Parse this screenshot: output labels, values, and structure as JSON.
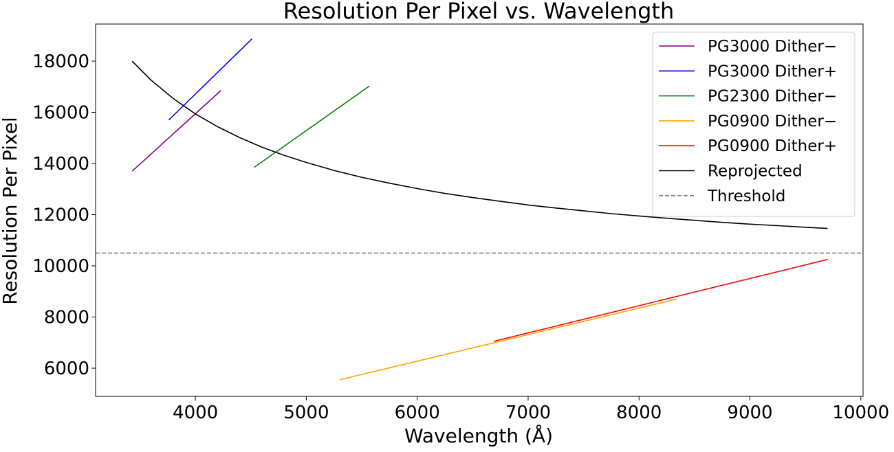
{
  "chart_data": {
    "type": "line",
    "title": "Resolution Per Pixel vs. Wavelength",
    "xlabel": "Wavelength (Å)",
    "ylabel": "Resolution Per Pixel",
    "xlim": [
      3100,
      10020
    ],
    "ylim": [
      4900,
      19450
    ],
    "xticks": [
      4000,
      5000,
      6000,
      7000,
      8000,
      9000,
      10000
    ],
    "xtick_labels": [
      "4000",
      "5000",
      "6000",
      "7000",
      "8000",
      "9000",
      "10000"
    ],
    "yticks": [
      6000,
      8000,
      10000,
      12000,
      14000,
      16000,
      18000
    ],
    "ytick_labels": [
      "6000",
      "8000",
      "10000",
      "12000",
      "14000",
      "16000",
      "18000"
    ],
    "grid": false,
    "legend_position": "top-right",
    "series": [
      {
        "name": "PG3000 Dither−",
        "color": "#800080",
        "dash": "solid",
        "x": [
          3430,
          4230
        ],
        "y": [
          13700,
          16850
        ]
      },
      {
        "name": "PG3000 Dither+",
        "color": "#0000ff",
        "dash": "solid",
        "x": [
          3760,
          4510
        ],
        "y": [
          15700,
          18870
        ]
      },
      {
        "name": "PG2300 Dither−",
        "color": "#008000",
        "dash": "solid",
        "x": [
          4530,
          5570
        ],
        "y": [
          13850,
          17030
        ]
      },
      {
        "name": "PG0900 Dither−",
        "color": "#ffa500",
        "dash": "solid",
        "x": [
          5300,
          8340
        ],
        "y": [
          5550,
          8700
        ]
      },
      {
        "name": "PG0900 Dither+",
        "color": "#ff0000",
        "dash": "solid",
        "x": [
          6690,
          9700
        ],
        "y": [
          7050,
          10250
        ]
      },
      {
        "name": "Reprojected",
        "color": "#000000",
        "dash": "solid",
        "x": [
          3430,
          3600,
          3800,
          4000,
          4200,
          4400,
          4600,
          4800,
          5000,
          5250,
          5500,
          5750,
          6000,
          6250,
          6500,
          6750,
          7000,
          7250,
          7500,
          7750,
          8000,
          8250,
          8500,
          8750,
          9000,
          9250,
          9500,
          9700
        ],
        "y": [
          18000,
          17260,
          16540,
          15940,
          15440,
          15010,
          14640,
          14320,
          14040,
          13730,
          13460,
          13230,
          13020,
          12830,
          12670,
          12520,
          12380,
          12260,
          12150,
          12040,
          11950,
          11860,
          11780,
          11700,
          11630,
          11570,
          11510,
          11460
        ]
      },
      {
        "name": "Threshold",
        "color": "#808080",
        "dash": "dashed",
        "x": [
          3100,
          10020
        ],
        "y": [
          10500,
          10500
        ]
      }
    ]
  }
}
